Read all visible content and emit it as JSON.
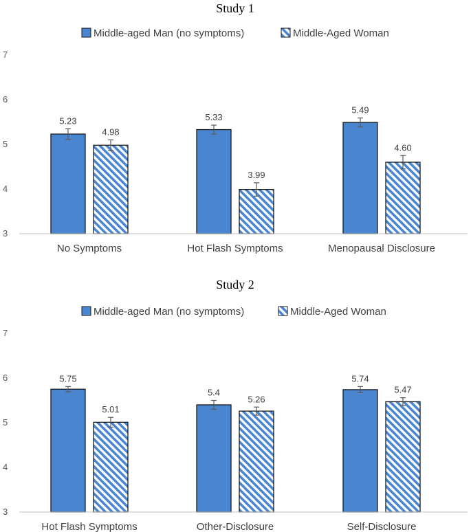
{
  "colors": {
    "man": "#4a86d0",
    "woman_stripe": "#4a86d0",
    "woman_bg": "#ffffff",
    "outline": "#1a1a1a",
    "axis": "#bfbfbf",
    "error": "#595959"
  },
  "chart_data": [
    {
      "type": "bar",
      "title": "Study 1",
      "legend": [
        "Middle-aged Man (no symptoms)",
        "Middle-Aged Woman"
      ],
      "ylim": [
        3,
        7
      ],
      "yticks": [
        3,
        4,
        5,
        6,
        7
      ],
      "categories": [
        "No Symptoms",
        "Hot Flash Symptoms",
        "Menopausal Disclosure"
      ],
      "series": [
        {
          "name": "Middle-aged Man (no symptoms)",
          "values": [
            5.23,
            5.33,
            5.49
          ],
          "labels": [
            "5.23",
            "5.33",
            "5.49"
          ],
          "errors": [
            0.12,
            0.1,
            0.1
          ]
        },
        {
          "name": "Middle-Aged Woman",
          "values": [
            4.98,
            3.99,
            4.6
          ],
          "labels": [
            "4.98",
            "3.99",
            "4.60"
          ],
          "errors": [
            0.12,
            0.15,
            0.15
          ]
        }
      ]
    },
    {
      "type": "bar",
      "title": "Study 2",
      "legend": [
        "Middle-aged Man (no symptoms)",
        "Middle-Aged Woman"
      ],
      "ylim": [
        3,
        7
      ],
      "yticks": [
        3,
        4,
        5,
        6,
        7
      ],
      "categories": [
        "Hot Flash Symptoms",
        "Other-Disclosure",
        "Self-Disclosure"
      ],
      "series": [
        {
          "name": "Middle-aged Man (no symptoms)",
          "values": [
            5.75,
            5.4,
            5.74
          ],
          "labels": [
            "5.75",
            "5.4",
            "5.74"
          ],
          "errors": [
            0.06,
            0.1,
            0.07
          ]
        },
        {
          "name": "Middle-Aged Woman",
          "values": [
            5.01,
            5.26,
            5.47
          ],
          "labels": [
            "5.01",
            "5.26",
            "5.47"
          ],
          "errors": [
            0.11,
            0.09,
            0.09
          ]
        }
      ]
    }
  ]
}
